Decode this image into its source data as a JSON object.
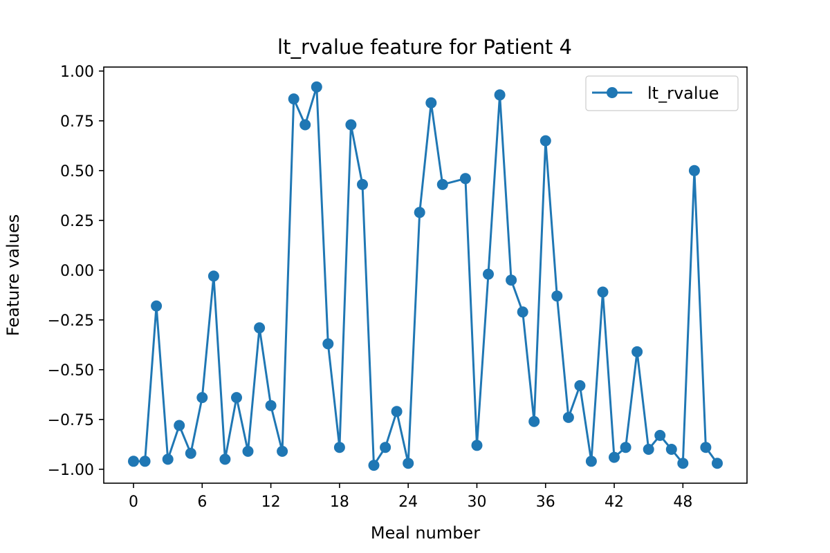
{
  "chart_data": {
    "type": "line",
    "title": "lt_rvalue feature for Patient 4",
    "xlabel": "Meal number",
    "ylabel": "Feature values",
    "xlim": [
      -2.6,
      53.6
    ],
    "ylim": [
      -1.07,
      1.02
    ],
    "x_ticks": [
      0,
      6,
      12,
      18,
      24,
      30,
      36,
      42,
      48
    ],
    "x_tick_labels": [
      "0",
      "6",
      "12",
      "18",
      "24",
      "30",
      "36",
      "42",
      "48"
    ],
    "y_ticks": [
      1.0,
      0.75,
      0.5,
      0.25,
      0.0,
      -0.25,
      -0.5,
      -0.75,
      -1.0
    ],
    "y_tick_labels": [
      "1.00",
      "0.75",
      "0.50",
      "0.25",
      "0.00",
      "−0.25",
      "−0.50",
      "−0.75",
      "−1.00"
    ],
    "grid": false,
    "legend_position": "top-right",
    "series": [
      {
        "name": "lt_rvalue",
        "color": "#1f77b4",
        "marker": "circle",
        "x": [
          0,
          1,
          2,
          3,
          4,
          5,
          6,
          7,
          8,
          9,
          10,
          11,
          12,
          13,
          14,
          15,
          16,
          17,
          18,
          19,
          20,
          21,
          22,
          23,
          24,
          25,
          26,
          27,
          28,
          29,
          30,
          31,
          32,
          33,
          34,
          35,
          36,
          37,
          38,
          39,
          40,
          41,
          42,
          43,
          44,
          45,
          46,
          47,
          48,
          49,
          50,
          51
        ],
        "y": [
          -0.96,
          -0.96,
          -0.18,
          -0.95,
          -0.78,
          -0.92,
          -0.64,
          -0.03,
          -0.95,
          -0.64,
          -0.91,
          -0.29,
          -0.68,
          -0.91,
          0.86,
          0.73,
          0.92,
          -0.37,
          -0.89,
          0.73,
          0.43,
          -0.98,
          -0.89,
          -0.71,
          -0.97,
          0.29,
          0.84,
          0.43,
          null,
          0.46,
          -0.88,
          -0.02,
          0.88,
          -0.05,
          -0.21,
          -0.76,
          0.65,
          -0.13,
          -0.74,
          -0.58,
          -0.96,
          -0.11,
          -0.94,
          -0.89,
          -0.41,
          -0.9,
          -0.83,
          -0.9,
          -0.97,
          0.5,
          -0.89,
          -0.97
        ]
      }
    ]
  }
}
